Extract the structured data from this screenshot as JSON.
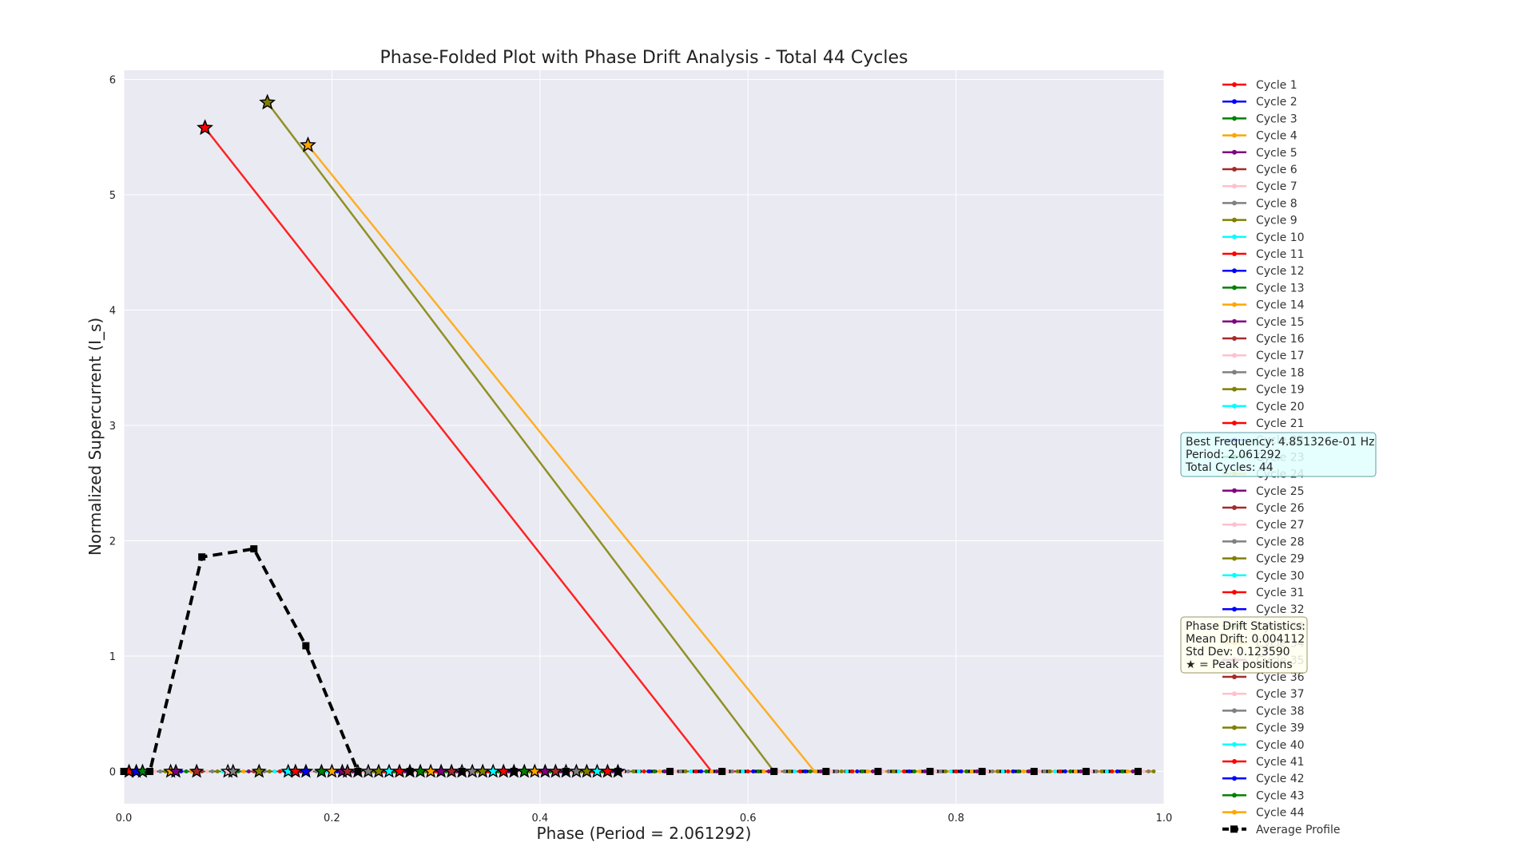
{
  "chart_data": {
    "type": "line",
    "title": "Phase-Folded Plot with Phase Drift Analysis - Total 44 Cycles",
    "xlabel": "Phase (Period = 2.061292)",
    "ylabel": "Normalized Supercurrent (I_s)",
    "xlim": [
      0.0,
      1.0
    ],
    "ylim": [
      -0.28,
      6.08
    ],
    "xticks": [
      "0.0",
      "0.2",
      "0.4",
      "0.6",
      "0.8",
      "1.0"
    ],
    "yticks": [
      "0",
      "1",
      "2",
      "3",
      "4",
      "5",
      "6"
    ],
    "grid": true,
    "legend_position": "outside-right",
    "palette": [
      "#ff0000",
      "#0000ff",
      "#008000",
      "#ffa500",
      "#800080",
      "#a52a2a",
      "#ffc0cb",
      "#808080",
      "#808000",
      "#00ffff"
    ],
    "cycles": [
      {
        "name": "Cycle 1",
        "peak_x": 0.078,
        "peak_y": 5.58,
        "drop_x": 0.565
      },
      {
        "name": "Cycle 9",
        "peak_x": 0.138,
        "peak_y": 5.8,
        "drop_x": 0.625
      },
      {
        "name": "Cycle 4",
        "peak_x": 0.177,
        "peak_y": 5.43,
        "drop_x": 0.664
      }
    ],
    "baseline_star_x": [
      0.005,
      0.012,
      0.018,
      0.045,
      0.05,
      0.07,
      0.1,
      0.105,
      0.13,
      0.158,
      0.165,
      0.175,
      0.19,
      0.2,
      0.21,
      0.215,
      0.225,
      0.235,
      0.245,
      0.255,
      0.265,
      0.275,
      0.285,
      0.295,
      0.305,
      0.315,
      0.325,
      0.335,
      0.345,
      0.355,
      0.365,
      0.375,
      0.385,
      0.395,
      0.405,
      0.415,
      0.425,
      0.435,
      0.445,
      0.455,
      0.465,
      0.475
    ],
    "average_profile": {
      "name": "Average Profile",
      "x": [
        0.0,
        0.025,
        0.075,
        0.125,
        0.175,
        0.225,
        0.275,
        0.325,
        0.375,
        0.425,
        0.475,
        0.525,
        0.575,
        0.625,
        0.675,
        0.725,
        0.775,
        0.825,
        0.875,
        0.925,
        0.975
      ],
      "y": [
        0.0,
        0.0,
        1.86,
        1.93,
        1.09,
        0.0,
        0.0,
        0.0,
        0.0,
        0.0,
        0.0,
        0.0,
        0.0,
        0.0,
        0.0,
        0.0,
        0.0,
        0.0,
        0.0,
        0.0,
        0.0
      ]
    },
    "legend_entries": [
      "Cycle 1",
      "Cycle 2",
      "Cycle 3",
      "Cycle 4",
      "Cycle 5",
      "Cycle 6",
      "Cycle 7",
      "Cycle 8",
      "Cycle 9",
      "Cycle 10",
      "Cycle 11",
      "Cycle 12",
      "Cycle 13",
      "Cycle 14",
      "Cycle 15",
      "Cycle 16",
      "Cycle 17",
      "Cycle 18",
      "Cycle 19",
      "Cycle 20",
      "Cycle 21",
      "Cycle 22",
      "Cycle 23",
      "Cycle 24",
      "Cycle 25",
      "Cycle 26",
      "Cycle 27",
      "Cycle 28",
      "Cycle 29",
      "Cycle 30",
      "Cycle 31",
      "Cycle 32",
      "Cycle 33",
      "Cycle 34",
      "Cycle 35",
      "Cycle 36",
      "Cycle 37",
      "Cycle 38",
      "Cycle 39",
      "Cycle 40",
      "Cycle 41",
      "Cycle 42",
      "Cycle 43",
      "Cycle 44",
      "Average Profile"
    ],
    "annotations": {
      "frequency_box": [
        "Best Frequency: 4.851326e-01 Hz",
        "Period: 2.061292",
        "Total Cycles: 44"
      ],
      "drift_box": [
        "Phase Drift Statistics:",
        "Mean Drift: 0.004112",
        "Std Dev: 0.123590",
        "★ = Peak positions"
      ]
    }
  }
}
